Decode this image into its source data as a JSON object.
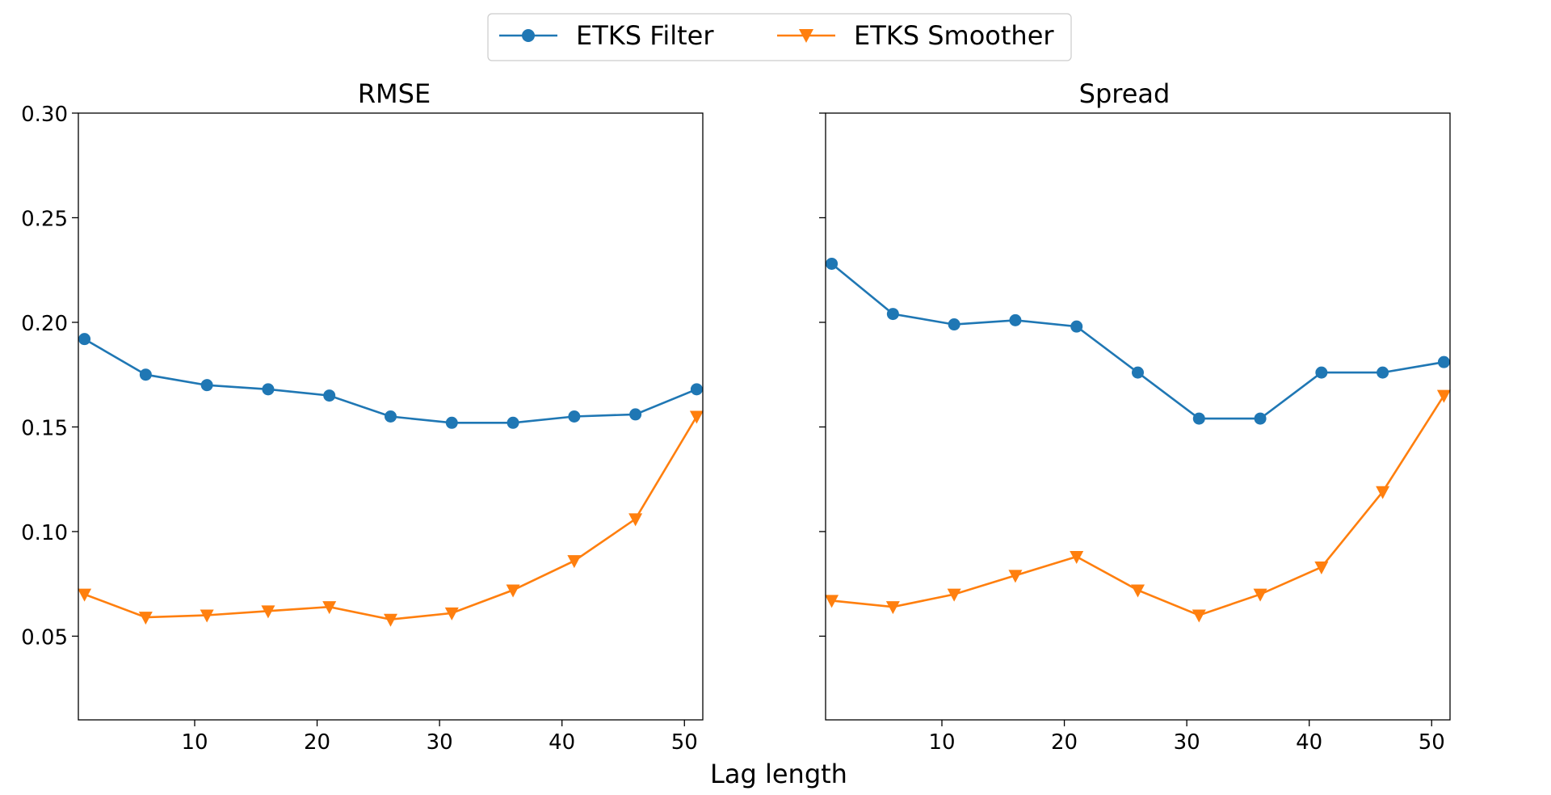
{
  "figure": {
    "shared_xlabel": "Lag length",
    "legend": {
      "placement": "top-center",
      "entries": [
        {
          "label": "ETKS Filter",
          "color": "#1f77b4",
          "marker": "circle"
        },
        {
          "label": "ETKS Smoother",
          "color": "#ff7f0e",
          "marker": "triangle-down"
        }
      ]
    }
  },
  "chart_data": [
    {
      "type": "line",
      "title": "RMSE",
      "xlabel": "",
      "ylabel": "",
      "xlim": [
        0.5,
        51.5
      ],
      "ylim": [
        0.01,
        0.3
      ],
      "xticks": [
        10,
        20,
        30,
        40,
        50
      ],
      "yticks": [
        0.05,
        0.1,
        0.15,
        0.2,
        0.25,
        0.3
      ],
      "ytick_labels_shown": true,
      "grid": false,
      "x": [
        1,
        6,
        11,
        16,
        21,
        26,
        31,
        36,
        41,
        46,
        51
      ],
      "series": [
        {
          "name": "ETKS Filter",
          "color": "#1f77b4",
          "marker": "circle",
          "values": [
            0.192,
            0.175,
            0.17,
            0.168,
            0.165,
            0.155,
            0.152,
            0.152,
            0.155,
            0.156,
            0.168
          ]
        },
        {
          "name": "ETKS Smoother",
          "color": "#ff7f0e",
          "marker": "triangle-down",
          "values": [
            0.07,
            0.059,
            0.06,
            0.062,
            0.064,
            0.058,
            0.061,
            0.072,
            0.086,
            0.106,
            0.155
          ]
        }
      ]
    },
    {
      "type": "line",
      "title": "Spread",
      "xlabel": "",
      "ylabel": "",
      "xlim": [
        0.5,
        51.5
      ],
      "ylim": [
        0.01,
        0.3
      ],
      "xticks": [
        10,
        20,
        30,
        40,
        50
      ],
      "yticks": [
        0.05,
        0.1,
        0.15,
        0.2,
        0.25,
        0.3
      ],
      "ytick_labels_shown": false,
      "grid": false,
      "x": [
        1,
        6,
        11,
        16,
        21,
        26,
        31,
        36,
        41,
        46,
        51
      ],
      "series": [
        {
          "name": "ETKS Filter",
          "color": "#1f77b4",
          "marker": "circle",
          "values": [
            0.228,
            0.204,
            0.199,
            0.201,
            0.198,
            0.176,
            0.154,
            0.154,
            0.176,
            0.176,
            0.181
          ]
        },
        {
          "name": "ETKS Smoother",
          "color": "#ff7f0e",
          "marker": "triangle-down",
          "values": [
            0.067,
            0.064,
            0.07,
            0.079,
            0.088,
            0.072,
            0.06,
            0.07,
            0.083,
            0.119,
            0.165
          ]
        }
      ]
    }
  ]
}
